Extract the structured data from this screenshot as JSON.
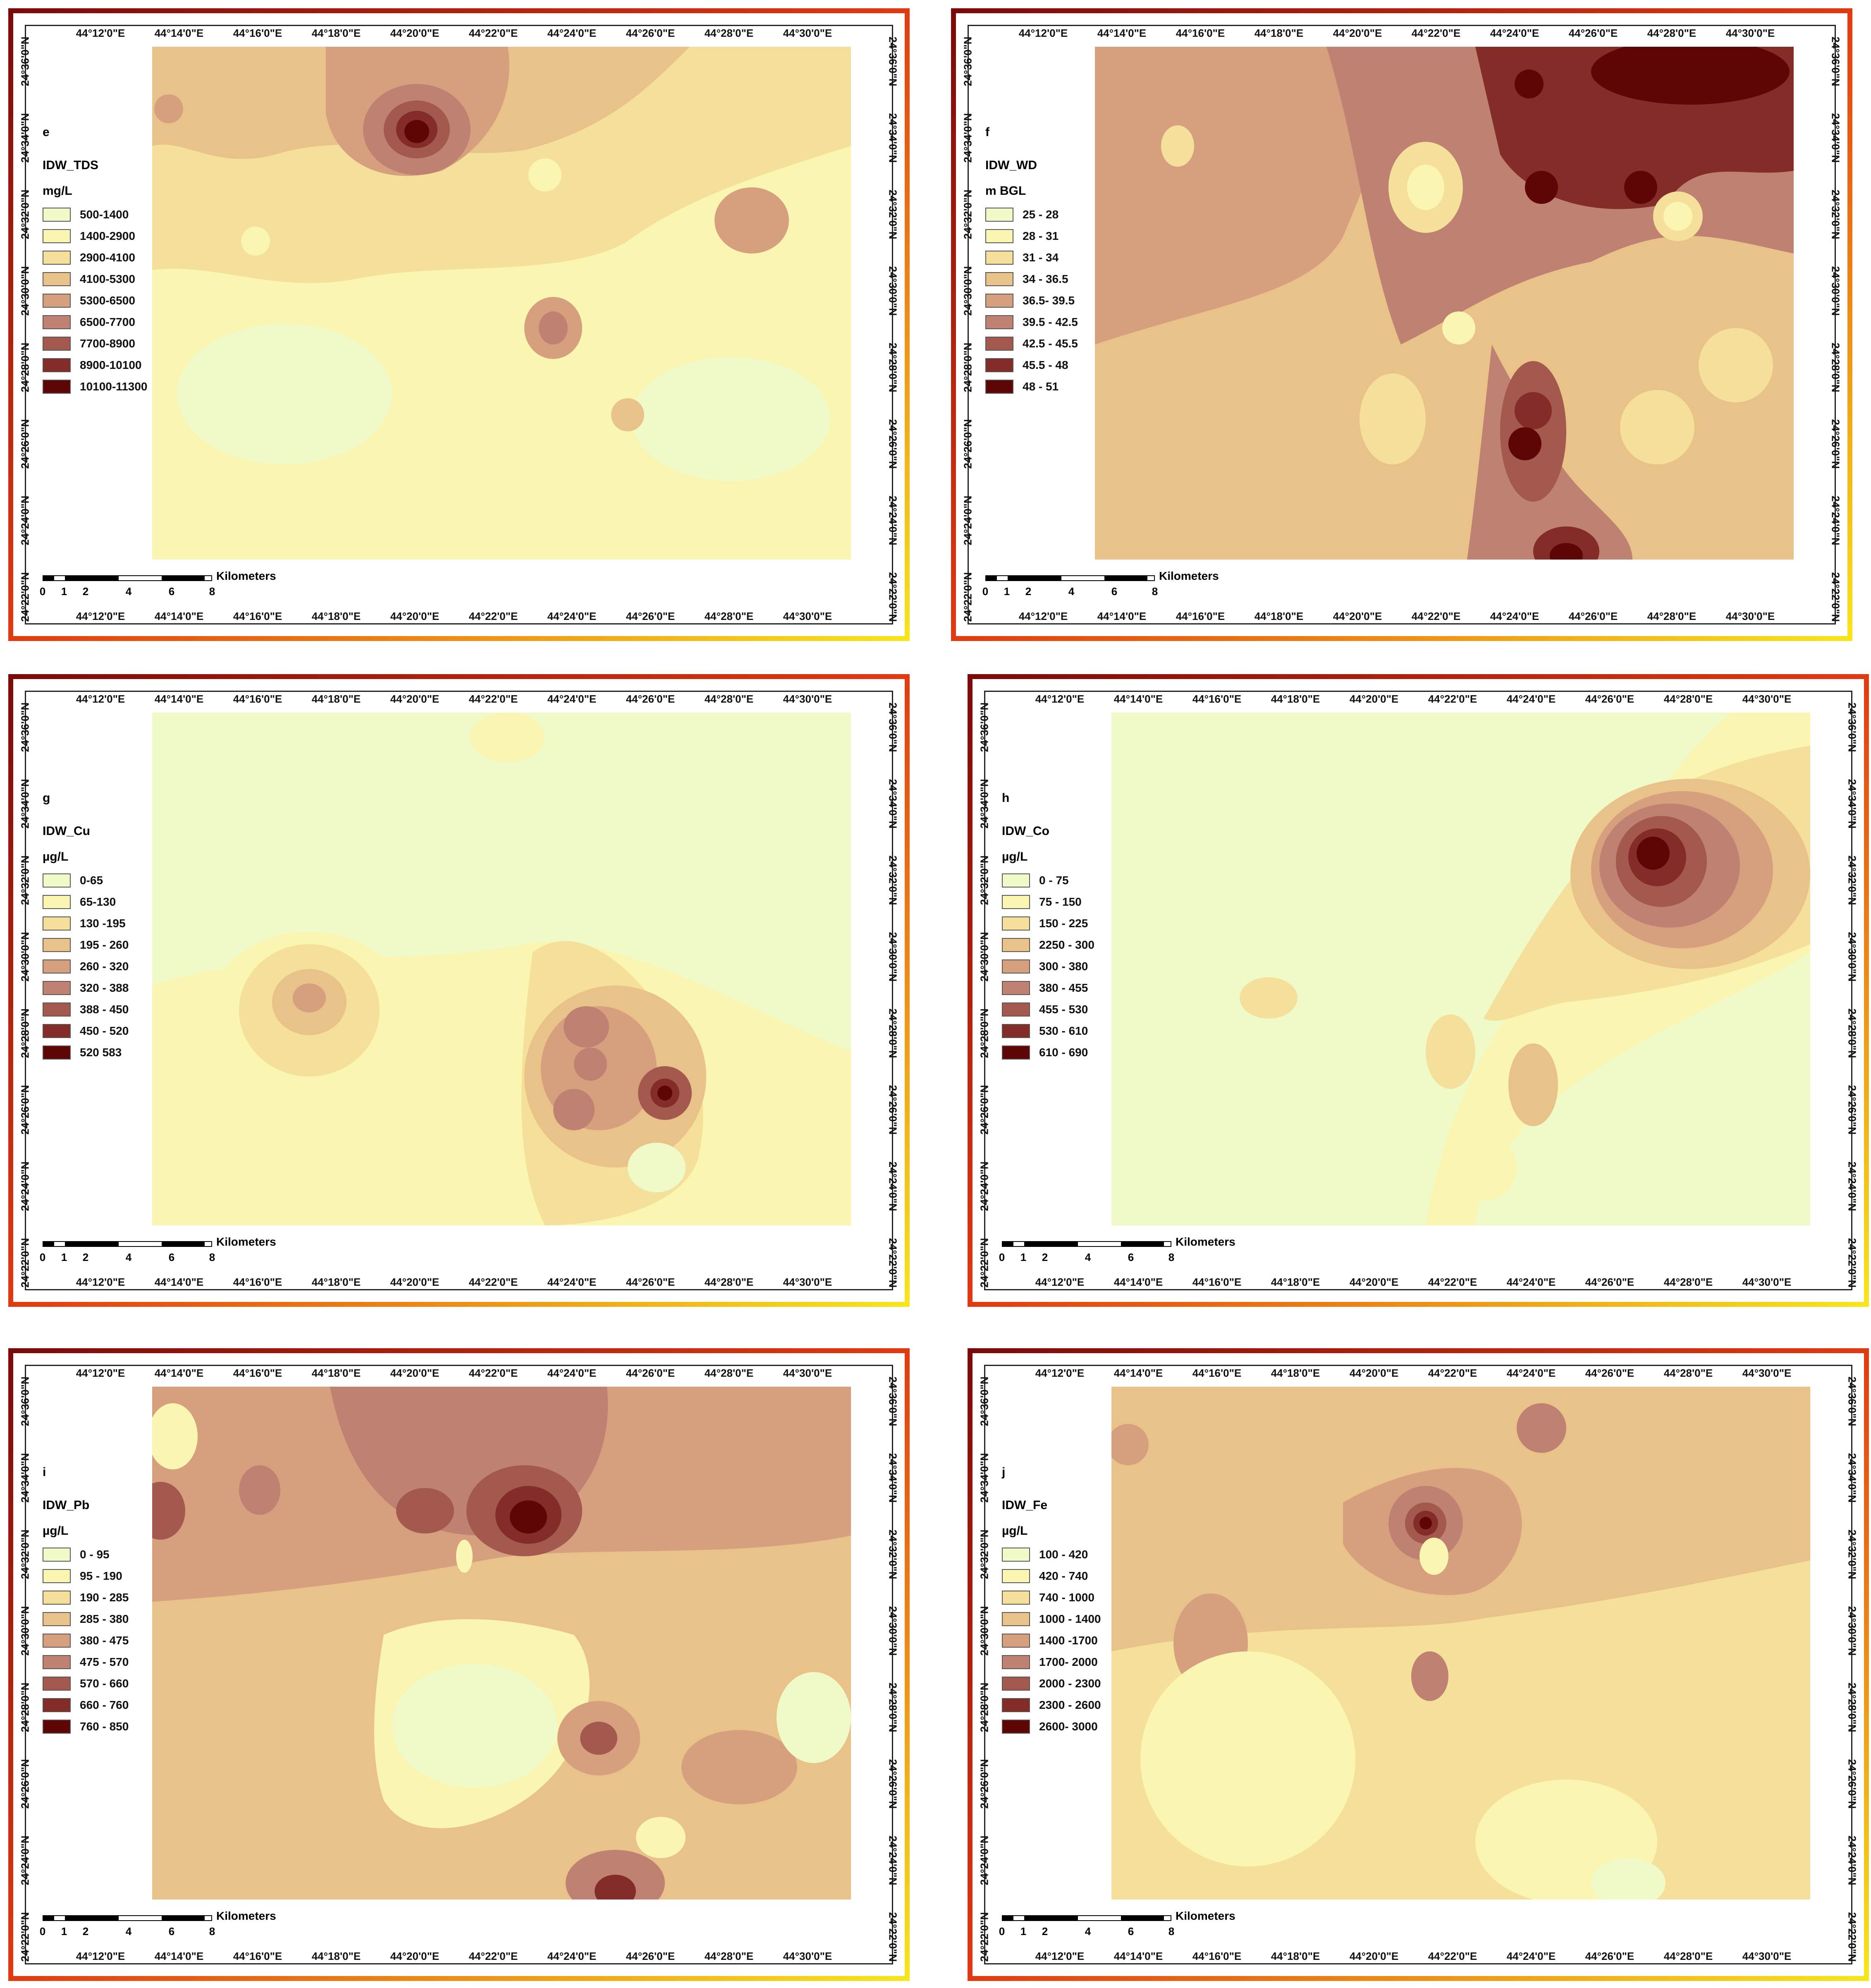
{
  "lon_labels": [
    "44°12'0\"E",
    "44°14'0\"E",
    "44°16'0\"E",
    "44°18'0\"E",
    "44°20'0\"E",
    "44°22'0\"E",
    "44°24'0\"E",
    "44°26'0\"E",
    "44°28'0\"E",
    "44°30'0\"E"
  ],
  "lat_labels": [
    "24°36'0\"N",
    "24°34'0\"N",
    "24°32'0\"N",
    "24°30'0\"N",
    "24°28'0\"N",
    "24°26'0\"N",
    "24°24'0\"N",
    "24°22'0\"N"
  ],
  "scale": {
    "ticks": [
      "0",
      "1",
      "2",
      "4",
      "6",
      "8"
    ],
    "label": "Kilometers"
  },
  "palette": [
    "#f0fac8",
    "#faf5b0",
    "#f4e09a",
    "#e9c28a",
    "#d6a07e",
    "#bf8171",
    "#a3594e",
    "#842c28",
    "#5e0505"
  ],
  "panels": [
    {
      "letter": "e",
      "title": "IDW_TDS",
      "unit": "mg/L",
      "classes": [
        "500-1400",
        "1400-2900",
        "2900-4100",
        "4100-5300",
        "5300-6500",
        "6500-7700",
        "7700-8900",
        "8900-10100",
        "10100-11300"
      ]
    },
    {
      "letter": "f",
      "title": "IDW_WD",
      "unit": "m BGL",
      "classes": [
        "25 - 28",
        "28 - 31",
        "31 - 34",
        "34 - 36.5",
        "36.5- 39.5",
        "39.5 - 42.5",
        "42.5 - 45.5",
        "45.5 - 48",
        "48 - 51"
      ]
    },
    {
      "letter": "g",
      "title": "IDW_Cu",
      "unit": "µg/L",
      "classes": [
        "0-65",
        "65-130",
        "130 -195",
        "195 - 260",
        "260 - 320",
        "320 - 388",
        "388 - 450",
        "450 - 520",
        "520 583"
      ]
    },
    {
      "letter": "h",
      "title": "IDW_Co",
      "unit": "µg/L",
      "classes": [
        "0 - 75",
        "75 - 150",
        "150 - 225",
        "2250 - 300",
        "300 - 380",
        "380 - 455",
        "455 - 530",
        "530 - 610",
        "610 - 690"
      ]
    },
    {
      "letter": "i",
      "title": "IDW_Pb",
      "unit": "µg/L",
      "classes": [
        "0 - 95",
        "95 - 190",
        "190 - 285",
        "285 - 380",
        "380 - 475",
        "475 - 570",
        "570 - 660",
        "660 - 760",
        "760 - 850"
      ]
    },
    {
      "letter": "j",
      "title": "IDW_Fe",
      "unit": "µg/L",
      "classes": [
        "100 - 420",
        "420 - 740",
        "740 - 1000",
        "1000 - 1400",
        "1400 -1700",
        "1700- 2000",
        "2000 - 2300",
        "2300 - 2600",
        "2600- 3000"
      ]
    }
  ]
}
